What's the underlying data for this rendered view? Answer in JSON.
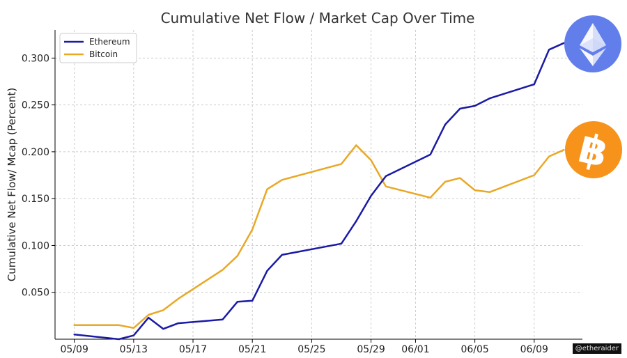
{
  "chart_data": {
    "type": "line",
    "title": "Cumulative Net Flow / Market Cap Over Time",
    "xlabel": "",
    "ylabel": "Cumulative Net Flow/ Mcap (Percent)",
    "x_ticks": [
      "05/09",
      "05/13",
      "05/17",
      "05/21",
      "05/25",
      "05/29",
      "06/01",
      "06/05",
      "06/09"
    ],
    "y_ticks": [
      "0.050",
      "0.100",
      "0.150",
      "0.200",
      "0.250",
      "0.300"
    ],
    "ylim": [
      0.0,
      0.33
    ],
    "grid": true,
    "legend_position": "top-left",
    "series": [
      {
        "name": "Ethereum",
        "color": "#1a1aa6",
        "x": [
          "05/09",
          "05/12",
          "05/13",
          "05/14",
          "05/15",
          "05/16",
          "05/19",
          "05/20",
          "05/21",
          "05/22",
          "05/23",
          "05/27",
          "05/28",
          "05/29",
          "05/30",
          "06/02",
          "06/03",
          "06/04",
          "06/05",
          "06/06",
          "06/09",
          "06/10",
          "06/11"
        ],
        "values": [
          0.005,
          0.0,
          0.004,
          0.023,
          0.011,
          0.017,
          0.021,
          0.04,
          0.041,
          0.073,
          0.09,
          0.102,
          0.126,
          0.153,
          0.174,
          0.197,
          0.229,
          0.246,
          0.249,
          0.257,
          0.272,
          0.309,
          0.316
        ]
      },
      {
        "name": "Bitcoin",
        "color": "#e9a825",
        "x": [
          "05/09",
          "05/12",
          "05/13",
          "05/14",
          "05/15",
          "05/16",
          "05/19",
          "05/20",
          "05/21",
          "05/22",
          "05/23",
          "05/27",
          "05/28",
          "05/29",
          "05/30",
          "06/02",
          "06/03",
          "06/04",
          "06/05",
          "06/06",
          "06/09",
          "06/10",
          "06/11"
        ],
        "values": [
          0.015,
          0.015,
          0.012,
          0.026,
          0.031,
          0.043,
          0.074,
          0.089,
          0.117,
          0.16,
          0.17,
          0.187,
          0.207,
          0.191,
          0.163,
          0.151,
          0.168,
          0.172,
          0.159,
          0.157,
          0.175,
          0.195,
          0.202
        ]
      }
    ]
  },
  "watermark": "@etheraider",
  "icons": {
    "ethereum": {
      "name": "ethereum-logo-icon",
      "color": "#627eea"
    },
    "bitcoin": {
      "name": "bitcoin-logo-icon",
      "color": "#f7931a"
    }
  }
}
